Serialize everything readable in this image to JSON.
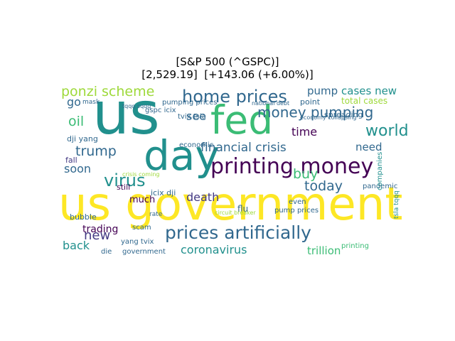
{
  "title": {
    "line1": "[S&P 500 (^GSPC)]",
    "line2": "[2,529.19]  [+143.06 (+6.00%)]"
  },
  "colors": {
    "yellow": "#fde725",
    "lime": "#9ed93a",
    "green": "#3bbc75",
    "teal": "#21908d",
    "blue": "#31688e",
    "indigo": "#443a83",
    "purple": "#440154"
  },
  "words": [
    {
      "text": "us",
      "color": "teal"
    },
    {
      "text": "fed",
      "color": "green"
    },
    {
      "text": "day",
      "color": "teal"
    },
    {
      "text": "us government",
      "color": "yellow"
    },
    {
      "text": "printing money",
      "color": "purple"
    },
    {
      "text": "prices artificially",
      "color": "blue"
    },
    {
      "text": "home prices",
      "color": "blue"
    },
    {
      "text": "ponzi scheme",
      "color": "lime"
    },
    {
      "text": "money pumping",
      "color": "blue"
    },
    {
      "text": "world",
      "color": "teal"
    },
    {
      "text": "virus",
      "color": "teal"
    },
    {
      "text": "trump",
      "color": "blue"
    },
    {
      "text": "financial crisis",
      "color": "blue"
    },
    {
      "text": "buy",
      "color": "green"
    },
    {
      "text": "today",
      "color": "blue"
    },
    {
      "text": "cases new",
      "color": "teal"
    },
    {
      "text": "pump",
      "color": "blue"
    },
    {
      "text": "see",
      "color": "blue"
    },
    {
      "text": "oil",
      "color": "green"
    },
    {
      "text": "go",
      "color": "blue"
    },
    {
      "text": "time",
      "color": "purple"
    },
    {
      "text": "need",
      "color": "blue"
    },
    {
      "text": "soon",
      "color": "blue"
    },
    {
      "text": "death",
      "color": "indigo"
    },
    {
      "text": "new",
      "color": "indigo"
    },
    {
      "text": "back",
      "color": "teal"
    },
    {
      "text": "trading",
      "color": "purple"
    },
    {
      "text": "coronavirus",
      "color": "teal"
    },
    {
      "text": "trillion",
      "color": "green"
    },
    {
      "text": "much",
      "color": "purple"
    },
    {
      "text": "pandemic",
      "color": "blue"
    },
    {
      "text": "total cases",
      "color": "lime"
    },
    {
      "text": "dji yang",
      "color": "blue"
    },
    {
      "text": "economic",
      "color": "blue"
    },
    {
      "text": "icix dji",
      "color": "blue"
    },
    {
      "text": "still",
      "color": "purple"
    },
    {
      "text": "fall",
      "color": "indigo"
    },
    {
      "text": "bubble",
      "color": "blue"
    },
    {
      "text": "scam",
      "color": "blue"
    },
    {
      "text": "government",
      "color": "blue"
    },
    {
      "text": "yang tvix",
      "color": "blue"
    },
    {
      "text": "die",
      "color": "blue"
    },
    {
      "text": "gspc icix",
      "color": "blue"
    },
    {
      "text": "tvix tsla",
      "color": "blue"
    },
    {
      "text": "pumping prices",
      "color": "blue"
    },
    {
      "text": "even",
      "color": "blue"
    },
    {
      "text": "pump prices",
      "color": "blue"
    },
    {
      "text": "flu",
      "color": "blue"
    },
    {
      "text": "point",
      "color": "blue"
    },
    {
      "text": "spreading",
      "color": "blue"
    },
    {
      "text": "companies",
      "color": "teal"
    },
    {
      "text": "printing",
      "color": "green"
    },
    {
      "text": "tsla tqqq",
      "color": "teal"
    },
    {
      "text": "economy collapsing",
      "color": "blue"
    },
    {
      "text": "national debt",
      "color": "blue"
    },
    {
      "text": "tqqq sqqq",
      "color": "blue"
    },
    {
      "text": "crisis coming",
      "color": "lime"
    },
    {
      "text": "circuit breaker",
      "color": "lime"
    },
    {
      "text": "mask",
      "color": "blue"
    },
    {
      "text": "rate",
      "color": "blue"
    }
  ]
}
